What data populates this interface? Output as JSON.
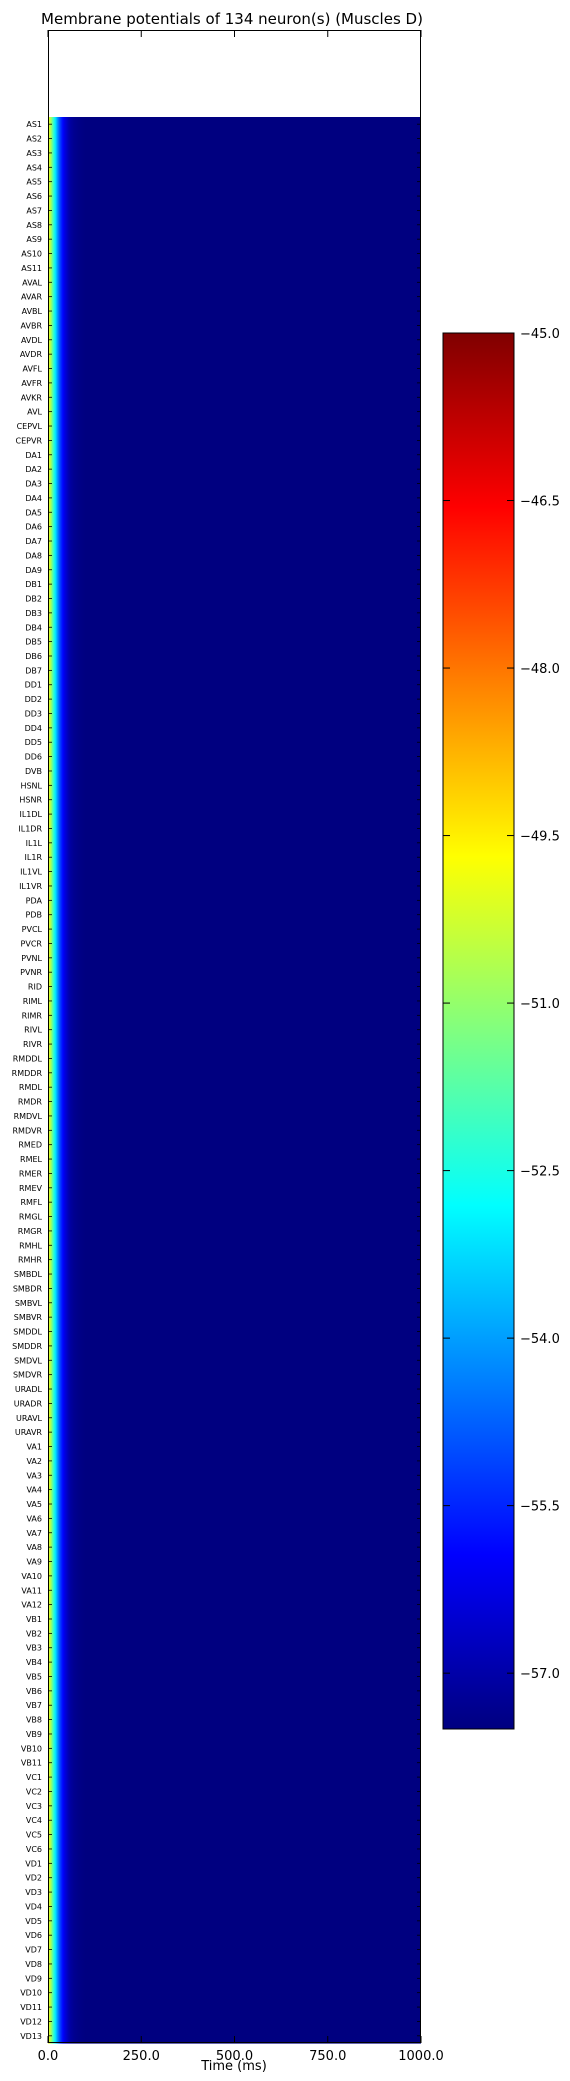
{
  "chart_data": {
    "type": "heatmap",
    "title": "Membrane potentials of 134 neuron(s) (Muscles D)",
    "xlabel": "Time (ms)",
    "ylabel": "",
    "xlim": [
      0,
      1000
    ],
    "x_ticks": [
      "0.0",
      "250.0",
      "500.0",
      "750.0",
      "1000.0"
    ],
    "x_tick_values": [
      0,
      250,
      500,
      750,
      1000
    ],
    "colorbar": {
      "colormap": "jet",
      "vmin": -57.5,
      "vmax": -45.0,
      "ticks": [
        "−45.0",
        "−46.5",
        "−48.0",
        "−49.5",
        "−51.0",
        "−52.5",
        "−54.0",
        "−55.5",
        "−57.0"
      ],
      "tick_values": [
        -45.0,
        -46.5,
        -48.0,
        -49.5,
        -51.0,
        -52.5,
        -54.0,
        -55.5,
        -57.0
      ]
    },
    "value_profile": {
      "description": "all rows identical",
      "time_ms": [
        0,
        5,
        10,
        15,
        20,
        25,
        30,
        35,
        40,
        45,
        50,
        55,
        60,
        70,
        80,
        100,
        150,
        1000
      ],
      "potential_mv": [
        -49.8,
        -50.3,
        -51.2,
        -52.2,
        -53.1,
        -54.0,
        -54.8,
        -55.4,
        -55.9,
        -56.3,
        -56.6,
        -56.9,
        -57.1,
        -57.3,
        -57.4,
        -57.5,
        -57.5,
        -57.5
      ]
    },
    "neurons": [
      "AS1",
      "AS2",
      "AS3",
      "AS4",
      "AS5",
      "AS6",
      "AS7",
      "AS8",
      "AS9",
      "AS10",
      "AS11",
      "AVAL",
      "AVAR",
      "AVBL",
      "AVBR",
      "AVDL",
      "AVDR",
      "AVFL",
      "AVFR",
      "AVKR",
      "AVL",
      "CEPVL",
      "CEPVR",
      "DA1",
      "DA2",
      "DA3",
      "DA4",
      "DA5",
      "DA6",
      "DA7",
      "DA8",
      "DA9",
      "DB1",
      "DB2",
      "DB3",
      "DB4",
      "DB5",
      "DB6",
      "DB7",
      "DD1",
      "DD2",
      "DD3",
      "DD4",
      "DD5",
      "DD6",
      "DVB",
      "HSNL",
      "HSNR",
      "IL1DL",
      "IL1DR",
      "IL1L",
      "IL1R",
      "IL1VL",
      "IL1VR",
      "PDA",
      "PDB",
      "PVCL",
      "PVCR",
      "PVNL",
      "PVNR",
      "RID",
      "RIML",
      "RIMR",
      "RIVL",
      "RIVR",
      "RMDDL",
      "RMDDR",
      "RMDL",
      "RMDR",
      "RMDVL",
      "RMDVR",
      "RMED",
      "RMEL",
      "RMER",
      "RMEV",
      "RMFL",
      "RMGL",
      "RMGR",
      "RMHL",
      "RMHR",
      "SMBDL",
      "SMBDR",
      "SMBVL",
      "SMBVR",
      "SMDDL",
      "SMDDR",
      "SMDVL",
      "SMDVR",
      "URADL",
      "URADR",
      "URAVL",
      "URAVR",
      "VA1",
      "VA2",
      "VA3",
      "VA4",
      "VA5",
      "VA6",
      "VA7",
      "VA8",
      "VA9",
      "VA10",
      "VA11",
      "VA12",
      "VB1",
      "VB2",
      "VB3",
      "VB4",
      "VB5",
      "VB6",
      "VB7",
      "VB8",
      "VB9",
      "VB10",
      "VB11",
      "VC1",
      "VC2",
      "VC3",
      "VC4",
      "VC5",
      "VC6",
      "VD1",
      "VD2",
      "VD3",
      "VD4",
      "VD5",
      "VD6",
      "VD7",
      "VD8",
      "VD9",
      "VD10",
      "VD11",
      "VD12",
      "VD13"
    ]
  }
}
